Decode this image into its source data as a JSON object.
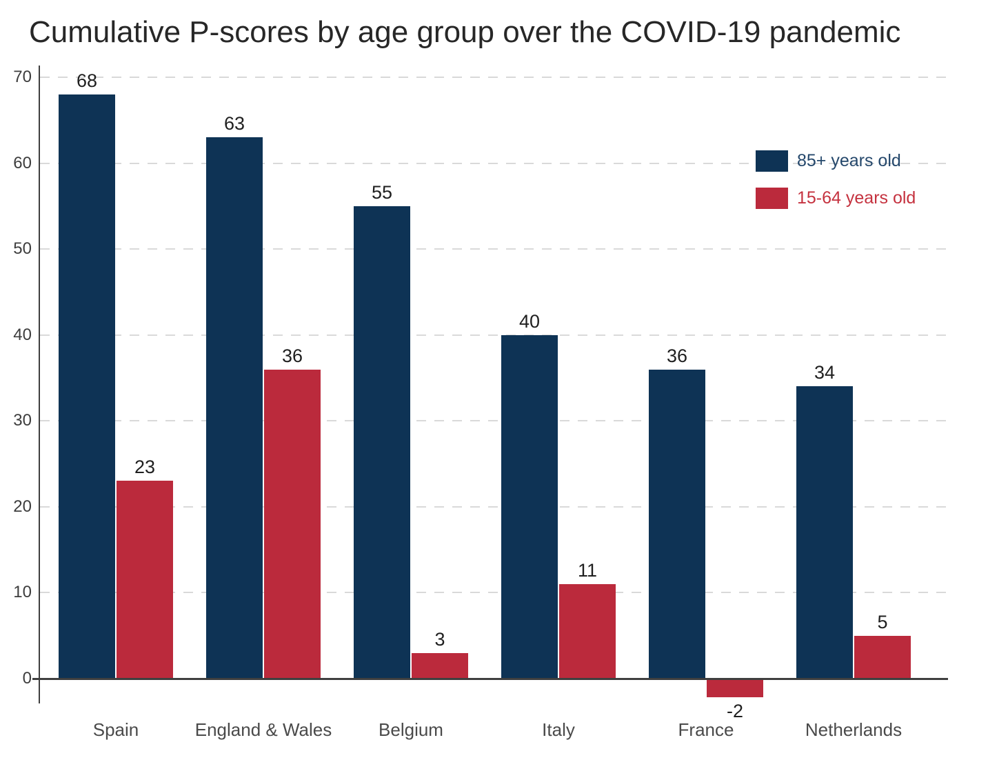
{
  "chart_data": {
    "type": "bar",
    "title": "Cumulative P-scores by age group over the COVID-19 pandemic",
    "categories": [
      "Spain",
      "England & Wales",
      "Belgium",
      "Italy",
      "France",
      "Netherlands"
    ],
    "series": [
      {
        "name": "85+ years old",
        "color": "#0e3355",
        "label_color": "#24476b",
        "values": [
          68,
          63,
          55,
          40,
          36,
          34
        ]
      },
      {
        "name": "15-64 years old",
        "color": "#bb2a3c",
        "label_color": "#c5323f",
        "values": [
          23,
          36,
          3,
          11,
          -2,
          5
        ]
      }
    ],
    "yticks": [
      0,
      10,
      20,
      30,
      40,
      50,
      60,
      70
    ],
    "ylim": [
      -3,
      70
    ],
    "xlabel": "",
    "ylabel": "",
    "grid": "horizontal-dashed",
    "legend_position": "upper-right",
    "bar_value_labels": true,
    "axis_color": "#3f3f3f",
    "gridline_color": "#d9d9d9"
  }
}
